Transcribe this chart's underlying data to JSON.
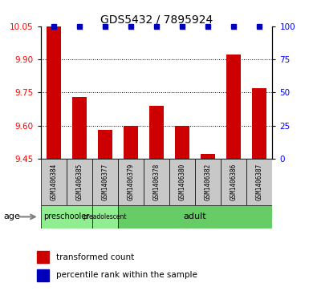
{
  "title": "GDS5432 / 7895924",
  "samples": [
    "GSM1406384",
    "GSM1406385",
    "GSM1406377",
    "GSM1406379",
    "GSM1406378",
    "GSM1406380",
    "GSM1406382",
    "GSM1406386",
    "GSM1406387"
  ],
  "red_values": [
    10.05,
    9.73,
    9.58,
    9.6,
    9.69,
    9.6,
    9.47,
    9.92,
    9.77
  ],
  "blue_values": [
    100,
    100,
    100,
    100,
    100,
    100,
    100,
    100,
    100
  ],
  "ylim_left": [
    9.45,
    10.05
  ],
  "ylim_right": [
    0,
    100
  ],
  "yticks_left": [
    9.45,
    9.6,
    9.75,
    9.9,
    10.05
  ],
  "yticks_right": [
    0,
    25,
    50,
    75,
    100
  ],
  "age_groups": [
    {
      "label": "preschooler",
      "start": 0,
      "end": 2,
      "color": "#90EE90",
      "fontsize": 7
    },
    {
      "label": "preadolescent",
      "start": 2,
      "end": 3,
      "color": "#90EE90",
      "fontsize": 5.5
    },
    {
      "label": "adult",
      "start": 3,
      "end": 9,
      "color": "#66CC66",
      "fontsize": 8
    }
  ],
  "bar_color": "#CC0000",
  "dot_color": "#0000BB",
  "bar_width": 0.55,
  "dot_size": 30,
  "legend_red": "transformed count",
  "legend_blue": "percentile rank within the sample",
  "age_label": "age",
  "gray_box_color": "#C8C8C8",
  "title_fontsize": 10,
  "tick_fontsize": 7.5,
  "sample_fontsize": 5.5
}
